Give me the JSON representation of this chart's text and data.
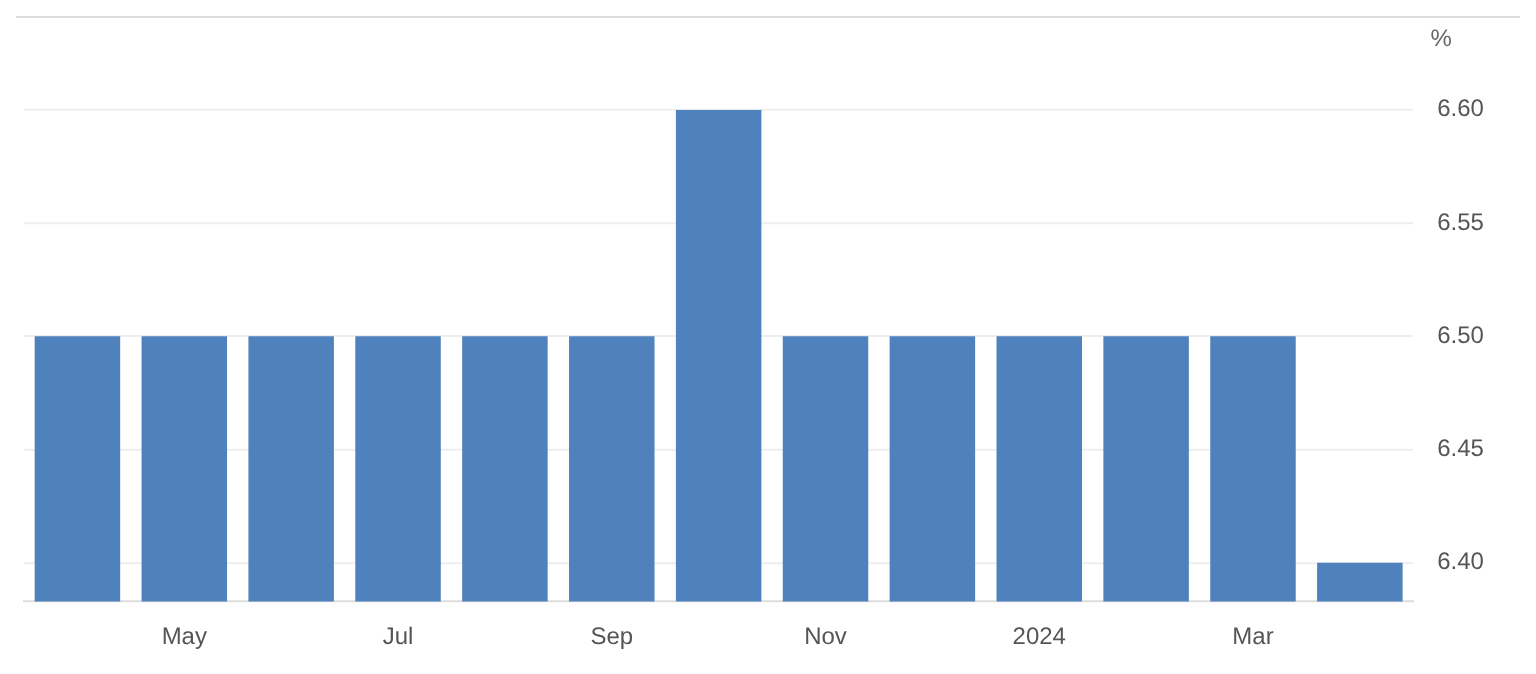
{
  "chart_data": {
    "type": "bar",
    "ylabel": "%",
    "categories": [
      null,
      "May",
      null,
      "Jul",
      null,
      "Sep",
      null,
      "Nov",
      null,
      "2024",
      null,
      "Mar",
      null
    ],
    "values": [
      6.5,
      6.5,
      6.5,
      6.5,
      6.5,
      6.5,
      6.6,
      6.5,
      6.5,
      6.5,
      6.5,
      6.5,
      6.4
    ],
    "color": "#4f81bd",
    "ylim": [
      6.383,
      6.6
    ],
    "yticks": [
      {
        "value": 6.4,
        "label": "6.40"
      },
      {
        "value": 6.45,
        "label": "6.45"
      },
      {
        "value": 6.5,
        "label": "6.50"
      },
      {
        "value": 6.55,
        "label": "6.55"
      },
      {
        "value": 6.6,
        "label": "6.60"
      }
    ],
    "grid": "y",
    "legend": false
  }
}
